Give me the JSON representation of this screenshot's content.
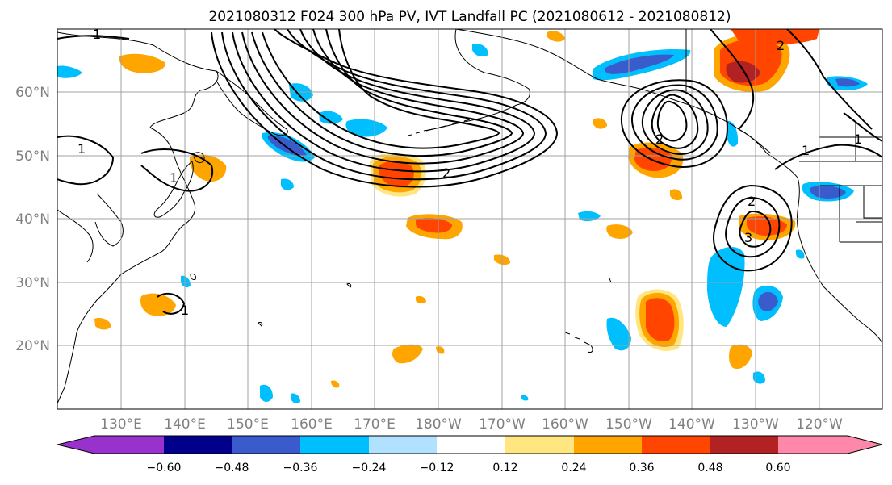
{
  "title": "2021080312 F024 300 hPa PV, IVT Landfall PC (2021080612 - 2021080812)",
  "lon_ticks": [
    "130°E",
    "140°E",
    "150°E",
    "160°E",
    "170°E",
    "180°W",
    "170°W",
    "160°W",
    "150°W",
    "140°W",
    "130°W",
    "120°W"
  ],
  "lat_ticks": [
    "60°N",
    "50°N",
    "40°N",
    "30°N",
    "20°N"
  ],
  "colorbar": {
    "tick_labels": [
      "−0.60",
      "−0.48",
      "−0.36",
      "−0.24",
      "−0.12",
      "0.12",
      "0.24",
      "0.36",
      "0.48",
      "0.60"
    ],
    "colors": [
      "#9932cc",
      "#00008b",
      "#3a5bcc",
      "#00bfff",
      "#b0e2ff",
      "#ffffff",
      "#ffe680",
      "#ffa500",
      "#ff4500",
      "#b22222",
      "#ff88aa"
    ]
  },
  "contour_labels": {
    "nw_one": "1",
    "west_one": "1",
    "japan_one": "1",
    "philippine_one": "1",
    "aleutian_two": "2",
    "gulf_two": "2",
    "offshore_two": "2",
    "offshore_three": "3",
    "canada_two": "2",
    "rockies_one": "1",
    "us_one": "1"
  },
  "colors": {
    "contour": "#000000",
    "grid": "#a0a0a0",
    "coast": "#000000"
  }
}
